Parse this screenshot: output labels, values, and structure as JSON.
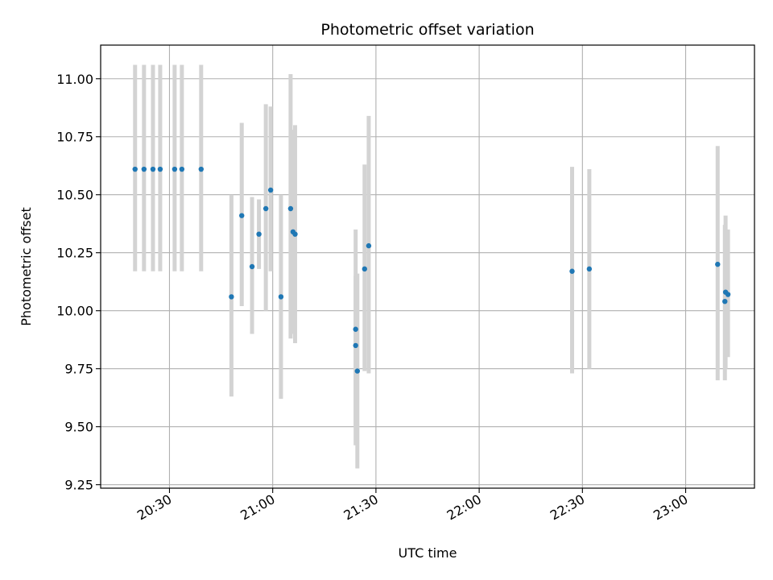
{
  "chart_data": {
    "type": "scatter",
    "title": "Photometric offset variation",
    "xlabel": "UTC time",
    "ylabel": "Photometric offset",
    "x_ticks": [
      "20:30",
      "21:00",
      "21:30",
      "22:00",
      "22:30",
      "23:00"
    ],
    "y_ticks": [
      "9.25",
      "9.50",
      "9.75",
      "10.00",
      "10.25",
      "10.50",
      "10.75",
      "11.00"
    ],
    "xlim": [
      "20:10",
      "23:20"
    ],
    "ylim": [
      9.235,
      11.145
    ],
    "grid": true,
    "colors": {
      "points": "#1f77b4",
      "errorbars": "#d3d3d3",
      "grid": "#b0b0b0"
    },
    "points": [
      {
        "x": "20:20",
        "y": 10.61,
        "ylow": 10.17,
        "yhigh": 11.06
      },
      {
        "x": "20:22.6",
        "y": 10.61,
        "ylow": 10.17,
        "yhigh": 11.06
      },
      {
        "x": "20:25.2",
        "y": 10.61,
        "ylow": 10.17,
        "yhigh": 11.06
      },
      {
        "x": "20:27.3",
        "y": 10.61,
        "ylow": 10.17,
        "yhigh": 11.06
      },
      {
        "x": "20:31.5",
        "y": 10.61,
        "ylow": 10.17,
        "yhigh": 11.06
      },
      {
        "x": "20:33.6",
        "y": 10.61,
        "ylow": 10.17,
        "yhigh": 11.06
      },
      {
        "x": "20:39.2",
        "y": 10.61,
        "ylow": 10.17,
        "yhigh": 11.06
      },
      {
        "x": "20:48",
        "y": 10.06,
        "ylow": 9.63,
        "yhigh": 10.5
      },
      {
        "x": "20:51",
        "y": 10.41,
        "ylow": 10.02,
        "yhigh": 10.81
      },
      {
        "x": "20:54",
        "y": 10.19,
        "ylow": 9.9,
        "yhigh": 10.49
      },
      {
        "x": "20:56",
        "y": 10.33,
        "ylow": 10.18,
        "yhigh": 10.48
      },
      {
        "x": "20:58",
        "y": 10.44,
        "ylow": 10.0,
        "yhigh": 10.89
      },
      {
        "x": "20:59.4",
        "y": 10.52,
        "ylow": 10.17,
        "yhigh": 10.88
      },
      {
        "x": "21:02.4",
        "y": 10.06,
        "ylow": 9.62,
        "yhigh": 10.5
      },
      {
        "x": "21:05.2",
        "y": 10.44,
        "ylow": 9.88,
        "yhigh": 11.02
      },
      {
        "x": "21:05.9",
        "y": 10.34,
        "ylow": 9.9,
        "yhigh": 10.78
      },
      {
        "x": "21:06.5",
        "y": 10.33,
        "ylow": 9.86,
        "yhigh": 10.8
      },
      {
        "x": "21:24.1",
        "y": 9.92,
        "ylow": 9.42,
        "yhigh": 10.35
      },
      {
        "x": "21:24.1",
        "y": 9.85,
        "ylow": 9.5,
        "yhigh": 10.15
      },
      {
        "x": "21:24.6",
        "y": 9.74,
        "ylow": 9.32,
        "yhigh": 10.16
      },
      {
        "x": "21:26.7",
        "y": 10.18,
        "ylow": 9.74,
        "yhigh": 10.63
      },
      {
        "x": "21:27.9",
        "y": 10.28,
        "ylow": 9.73,
        "yhigh": 10.84
      },
      {
        "x": "22:27",
        "y": 10.17,
        "ylow": 9.73,
        "yhigh": 10.62
      },
      {
        "x": "22:32",
        "y": 10.18,
        "ylow": 9.75,
        "yhigh": 10.61
      },
      {
        "x": "23:09.3",
        "y": 10.2,
        "ylow": 9.7,
        "yhigh": 10.71
      },
      {
        "x": "23:11.4",
        "y": 10.04,
        "ylow": 9.7,
        "yhigh": 10.37
      },
      {
        "x": "23:11.6",
        "y": 10.08,
        "ylow": 9.75,
        "yhigh": 10.41
      },
      {
        "x": "23:12.3",
        "y": 10.07,
        "ylow": 9.8,
        "yhigh": 10.35
      }
    ]
  }
}
